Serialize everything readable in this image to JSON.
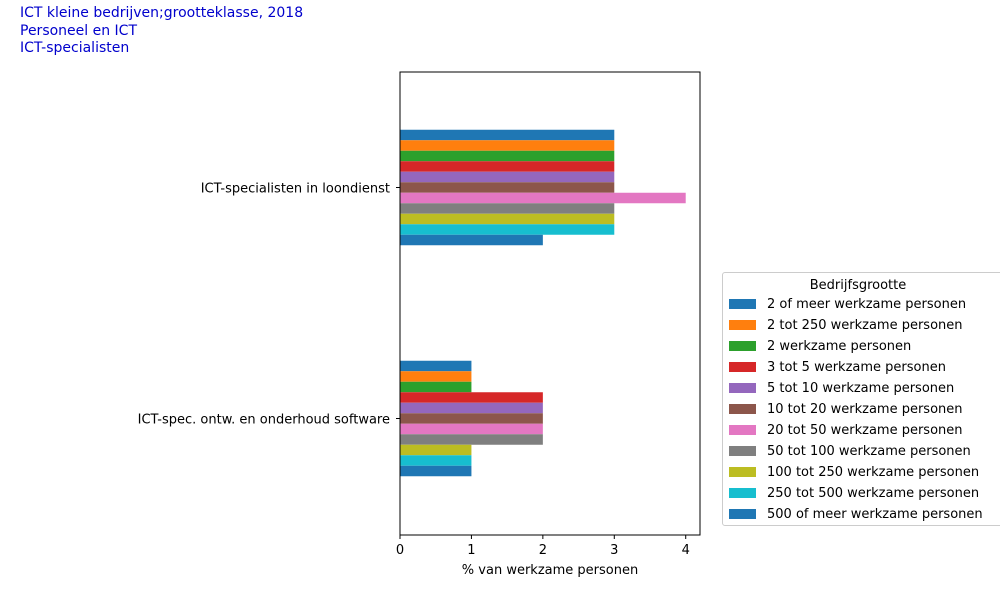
{
  "header": {
    "line1": "ICT kleine bedrijven;grootteklasse, 2018",
    "line2": "Personeel en ICT",
    "line3": "ICT-specialisten"
  },
  "chart_data": {
    "type": "bar",
    "orientation": "horizontal",
    "categories": [
      "ICT-specialisten in loondienst",
      "ICT-spec. ontw. en onderhoud software"
    ],
    "xlabel": "% van werkzame personen",
    "xlim": [
      0,
      4.2
    ],
    "xticks": [
      0,
      1,
      2,
      3,
      4
    ],
    "legend_title": "Bedrijfsgrootte",
    "legend_position": "right",
    "series": [
      {
        "name": "2 of meer werkzame personen",
        "color": "#1f77b4",
        "values": [
          3,
          1
        ]
      },
      {
        "name": "2 tot 250 werkzame personen",
        "color": "#ff7f0e",
        "values": [
          3,
          1
        ]
      },
      {
        "name": "2 werkzame personen",
        "color": "#2ca02c",
        "values": [
          3,
          1
        ]
      },
      {
        "name": "3 tot 5 werkzame personen",
        "color": "#d62728",
        "values": [
          3,
          2
        ]
      },
      {
        "name": "5 tot 10 werkzame personen",
        "color": "#9467bd",
        "values": [
          3,
          2
        ]
      },
      {
        "name": "10 tot 20 werkzame personen",
        "color": "#8c564b",
        "values": [
          3,
          2
        ]
      },
      {
        "name": "20 tot 50 werkzame personen",
        "color": "#e377c2",
        "values": [
          4,
          2
        ]
      },
      {
        "name": "50 tot 100 werkzame personen",
        "color": "#7f7f7f",
        "values": [
          3,
          2
        ]
      },
      {
        "name": "100 tot 250 werkzame personen",
        "color": "#bcbd22",
        "values": [
          3,
          1
        ]
      },
      {
        "name": "250 tot 500 werkzame personen",
        "color": "#17becf",
        "values": [
          3,
          1
        ]
      },
      {
        "name": "500 of meer werkzame personen",
        "color": "#1f77b4",
        "values": [
          2,
          1
        ]
      }
    ]
  }
}
